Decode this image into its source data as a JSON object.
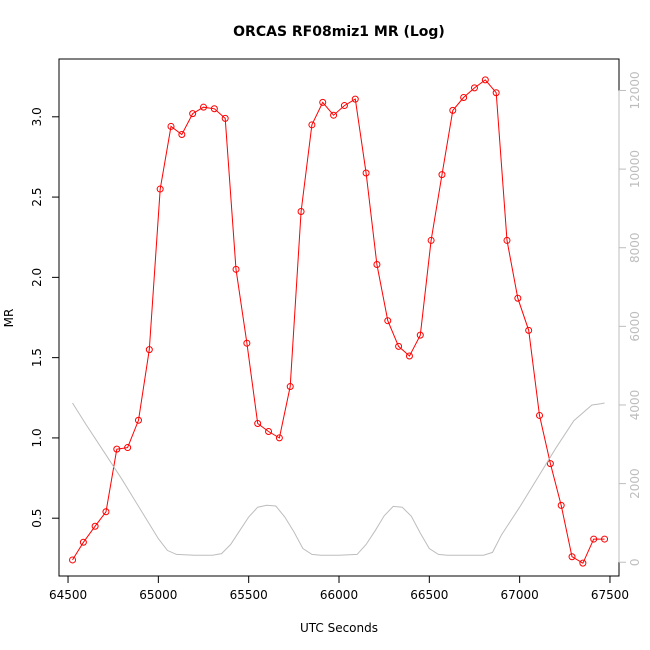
{
  "chart_data": {
    "type": "line",
    "title": "ORCAS RF08miz1 MR (Log)",
    "xlabel": "UTC Seconds",
    "ylabel": "MR",
    "xlim": [
      64450,
      67550
    ],
    "ylim": [
      0.14,
      3.36
    ],
    "y2lim": [
      -350,
      12800
    ],
    "grid": false,
    "legend": "none",
    "x_ticks": [
      64500,
      65000,
      65500,
      66000,
      66500,
      67000,
      67500
    ],
    "y_ticks": [
      0.5,
      1.0,
      1.5,
      2.0,
      2.5,
      3.0
    ],
    "y_tick_labels": [
      "0.5",
      "1.0",
      "1.5",
      "2.0",
      "2.5",
      "3.0"
    ],
    "y2_ticks": [
      0,
      2000,
      4000,
      6000,
      8000,
      10000,
      12000
    ],
    "series": [
      {
        "color": "#ff0000",
        "axis": "left",
        "markers": "open-circle",
        "x": [
          64525,
          64585,
          64650,
          64710,
          64770,
          64830,
          64890,
          64950,
          65010,
          65070,
          65130,
          65190,
          65250,
          65310,
          65370,
          65430,
          65490,
          65550,
          65610,
          65670,
          65730,
          65790,
          65850,
          65910,
          65970,
          66030,
          66090,
          66150,
          66210,
          66270,
          66330,
          66390,
          66450,
          66510,
          66570,
          66630,
          66690,
          66750,
          66810,
          66870,
          66930,
          66990,
          67050,
          67110,
          67170,
          67230,
          67290,
          67350,
          67410,
          67470
        ],
        "values": [
          0.24,
          0.35,
          0.45,
          0.54,
          0.93,
          0.94,
          1.11,
          1.55,
          2.55,
          2.94,
          2.89,
          3.02,
          3.06,
          3.05,
          2.99,
          2.05,
          1.59,
          1.09,
          1.04,
          1.0,
          1.32,
          2.41,
          2.95,
          3.09,
          3.01,
          3.07,
          3.11,
          2.65,
          2.08,
          1.73,
          1.57,
          1.51,
          1.64,
          2.23,
          2.64,
          3.04,
          3.12,
          3.18,
          3.23,
          3.15,
          2.23,
          1.87,
          1.67,
          1.14,
          0.84,
          0.58,
          0.26,
          0.22,
          0.37,
          0.37
        ]
      },
      {
        "color": "#bdbdbd",
        "axis": "right",
        "markers": "none",
        "x": [
          64525,
          64600,
          64700,
          64800,
          64900,
          65000,
          65050,
          65100,
          65200,
          65300,
          65350,
          65400,
          65450,
          65500,
          65550,
          65600,
          65650,
          65700,
          65750,
          65800,
          65850,
          65900,
          66000,
          66100,
          66150,
          66200,
          66250,
          66300,
          66350,
          66400,
          66450,
          66500,
          66550,
          66600,
          66650,
          66700,
          66800,
          66850,
          66900,
          67000,
          67100,
          67200,
          67300,
          67400,
          67450,
          67470
        ],
        "values": [
          4050,
          3500,
          2800,
          2100,
          1350,
          600,
          300,
          200,
          180,
          180,
          220,
          450,
          800,
          1150,
          1400,
          1450,
          1430,
          1150,
          780,
          350,
          200,
          180,
          180,
          200,
          450,
          800,
          1180,
          1420,
          1400,
          1170,
          740,
          350,
          200,
          180,
          180,
          180,
          180,
          250,
          700,
          1400,
          2150,
          2900,
          3600,
          4000,
          4030,
          4050
        ]
      }
    ]
  }
}
